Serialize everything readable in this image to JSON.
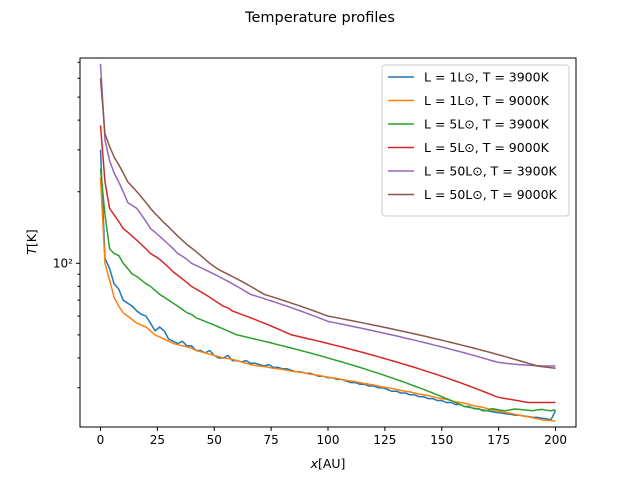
{
  "chart_data": {
    "type": "line",
    "title": "Temperature profiles",
    "xlabel": "x[AU]",
    "ylabel": "T[K]",
    "x_ticks": [
      "0",
      "25",
      "50",
      "75",
      "100",
      "125",
      "150",
      "175",
      "200"
    ],
    "y_ticks": [
      "10²"
    ],
    "y_scale": "log",
    "xlim": [
      -9,
      209
    ],
    "ylim": [
      20.5,
      730
    ],
    "grid": false,
    "legend_position": "top-right",
    "x": [
      0,
      2,
      4,
      6,
      8,
      10,
      12,
      14,
      16,
      18,
      20,
      22,
      24,
      26,
      28,
      30,
      32,
      34,
      36,
      38,
      40,
      42,
      44,
      46,
      48,
      50,
      52,
      54,
      56,
      58,
      60,
      62,
      64,
      66,
      68,
      70,
      72,
      74,
      76,
      78,
      80,
      82,
      84,
      86,
      88,
      90,
      92,
      94,
      96,
      98,
      100,
      102,
      104,
      106,
      108,
      110,
      112,
      114,
      116,
      118,
      120,
      122,
      124,
      126,
      128,
      130,
      132,
      134,
      136,
      138,
      140,
      142,
      144,
      146,
      148,
      150,
      152,
      154,
      156,
      158,
      160,
      162,
      164,
      166,
      168,
      170,
      172,
      174,
      176,
      178,
      180,
      182,
      184,
      186,
      188,
      190,
      192,
      194,
      196,
      198,
      200
    ],
    "series": [
      {
        "name": "L = 1L⊙, T = 3900K",
        "color": "#1f77b4",
        "values": [
          300,
          105,
          95,
          82,
          78,
          70,
          68,
          66,
          63,
          61,
          60,
          56,
          52,
          54,
          52,
          48,
          47,
          46,
          47,
          45,
          45,
          43,
          43,
          42,
          43,
          41,
          40,
          40,
          41,
          39,
          39,
          38.5,
          39,
          38,
          38,
          37.5,
          37,
          37.5,
          36.5,
          36.5,
          36,
          36,
          35.5,
          35,
          35,
          34.5,
          34.5,
          34,
          33.5,
          33.5,
          33,
          33,
          32.5,
          32.5,
          32,
          31.5,
          31.5,
          31,
          31,
          30.5,
          30.5,
          30,
          30,
          29.5,
          29,
          29,
          28.5,
          28.5,
          28,
          28,
          27.5,
          27.5,
          27,
          27,
          26.5,
          26.5,
          26,
          26,
          25.5,
          25.5,
          25,
          25,
          24.5,
          24.5,
          24,
          24,
          23.8,
          23.6,
          23.5,
          23.3,
          23.2,
          23,
          23,
          22.8,
          22.7,
          22.5,
          22.5,
          22.3,
          22.2,
          22,
          24
        ]
      },
      {
        "name": "L = 1L⊙, T = 9000K",
        "color": "#ff7f0e",
        "values": [
          230,
          100,
          85,
          72,
          66,
          62,
          60,
          58,
          56,
          55,
          54,
          52,
          50,
          49,
          48,
          47,
          46,
          45.5,
          45,
          44.5,
          44,
          43,
          42.5,
          42,
          41.5,
          41,
          40.5,
          40,
          39.8,
          39.5,
          39,
          38.5,
          38,
          37.5,
          37.2,
          37,
          36.8,
          36.5,
          36.2,
          36,
          35.8,
          35.5,
          35.2,
          35,
          34.8,
          34.5,
          34.2,
          34,
          33.8,
          33.5,
          33.2,
          33,
          32.8,
          32.5,
          32.2,
          32,
          31.8,
          31.5,
          31.2,
          31,
          30.8,
          30.5,
          30.2,
          30,
          29.8,
          29.5,
          29.2,
          29,
          28.8,
          28.5,
          28.2,
          28,
          27.8,
          27.5,
          27.2,
          27,
          26.8,
          26.5,
          26.2,
          26,
          25.8,
          25.5,
          25.2,
          25,
          24.8,
          24.5,
          24.2,
          24,
          23.8,
          23.6,
          23.4,
          23.2,
          23,
          22.8,
          22.6,
          22.4,
          22.2,
          22,
          21.9,
          21.8,
          21.7
        ]
      },
      {
        "name": "L = 5L⊙, T = 3900K",
        "color": "#2ca02c",
        "values": [
          250,
          160,
          115,
          110,
          108,
          100,
          95,
          90,
          88,
          85,
          82,
          80,
          77,
          74,
          72,
          70,
          68,
          66,
          64,
          62,
          61,
          59,
          58,
          57,
          56,
          55,
          54,
          53,
          52,
          51,
          50,
          49.5,
          49,
          48.5,
          48,
          47.5,
          47,
          46.5,
          46,
          45.5,
          45,
          44.5,
          44,
          43.5,
          43,
          42.5,
          42,
          41.5,
          41,
          40.5,
          40,
          39.5,
          39,
          38.5,
          38,
          37.5,
          37,
          36.5,
          36,
          35.5,
          35,
          34.5,
          34,
          33.5,
          33,
          32.5,
          32,
          31.5,
          31,
          30.5,
          30,
          29.5,
          29,
          28.5,
          28,
          27.5,
          27,
          26.5,
          26,
          25.5,
          25,
          24.8,
          24.6,
          24.4,
          24.2,
          24,
          24.5,
          24.3,
          24.1,
          24,
          24.2,
          24.4,
          24.3,
          24.2,
          24.1,
          24,
          24.2,
          24.3,
          24.1,
          24,
          24.2
        ]
      },
      {
        "name": "L = 5L⊙, T = 9000K",
        "color": "#d62728",
        "values": [
          380,
          220,
          170,
          160,
          150,
          140,
          135,
          130,
          125,
          120,
          115,
          110,
          107,
          104,
          100,
          96,
          92,
          89,
          86,
          83,
          80,
          78,
          76,
          74,
          72,
          70,
          68,
          66,
          65,
          63,
          62,
          61,
          60,
          59,
          58,
          57,
          56,
          55,
          54,
          53,
          52,
          51,
          50,
          49.5,
          49,
          48.5,
          48,
          47.5,
          47,
          46.5,
          46,
          45.5,
          45,
          44.5,
          44,
          43.5,
          43,
          42.5,
          42,
          41.5,
          41,
          40.5,
          40,
          39.5,
          39,
          38.5,
          38,
          37.5,
          37,
          36.5,
          36,
          35.5,
          35,
          34.5,
          34,
          33.5,
          33,
          32.5,
          32,
          31.5,
          31,
          30.5,
          30,
          29.5,
          29,
          28.5,
          28,
          27.5,
          27.2,
          27,
          26.8,
          26.6,
          26.4,
          26.2,
          26,
          26,
          26,
          26,
          26,
          26,
          26
        ]
      },
      {
        "name": "L = 50L⊙, T = 3900K",
        "color": "#9467bd",
        "values": [
          690,
          330,
          270,
          240,
          220,
          200,
          180,
          175,
          170,
          160,
          150,
          140,
          135,
          130,
          125,
          120,
          115,
          110,
          107,
          104,
          100,
          98,
          96,
          94,
          92,
          90,
          88,
          86,
          84,
          82,
          80,
          78,
          76,
          74,
          73,
          72,
          71,
          70,
          69,
          68,
          67,
          66,
          65,
          64,
          63,
          62,
          61,
          60,
          59,
          58,
          57,
          56.5,
          56,
          55.5,
          55,
          54.5,
          54,
          53.5,
          53,
          52.5,
          52,
          51.5,
          51,
          50.5,
          50,
          49.5,
          49,
          48.5,
          48,
          47.5,
          47,
          46.5,
          46,
          45.5,
          45,
          44.5,
          44,
          43.5,
          43,
          42.5,
          42,
          41.5,
          41,
          40.5,
          40,
          39.5,
          39,
          38.5,
          38.2,
          38,
          37.8,
          37.6,
          37.5,
          37.4,
          37.3,
          37.2,
          37.1,
          37,
          37,
          37,
          37
        ]
      },
      {
        "name": "L = 50L⊙, T = 9000K",
        "color": "#8c564b",
        "values": [
          600,
          350,
          310,
          280,
          260,
          240,
          220,
          210,
          200,
          190,
          180,
          170,
          162,
          155,
          148,
          142,
          136,
          130,
          125,
          120,
          116,
          112,
          108,
          104,
          100,
          97,
          94,
          92,
          90,
          88,
          86,
          84,
          82,
          80,
          78,
          76,
          74,
          73,
          72,
          71,
          70,
          69,
          68,
          67,
          66,
          65,
          64,
          63,
          62,
          61,
          60,
          59.5,
          59,
          58.5,
          58,
          57.5,
          57,
          56.5,
          56,
          55.5,
          55,
          54.5,
          54,
          53.5,
          53,
          52.5,
          52,
          51.5,
          51,
          50.5,
          50,
          49.5,
          49,
          48.5,
          48,
          47.5,
          47,
          46.5,
          46,
          45.5,
          45,
          44.5,
          44,
          43.5,
          43,
          42.5,
          42,
          41.5,
          41,
          40.5,
          40,
          39.5,
          39,
          38.5,
          38,
          37.5,
          37,
          36.8,
          36.6,
          36.4,
          36.2
        ]
      }
    ]
  }
}
